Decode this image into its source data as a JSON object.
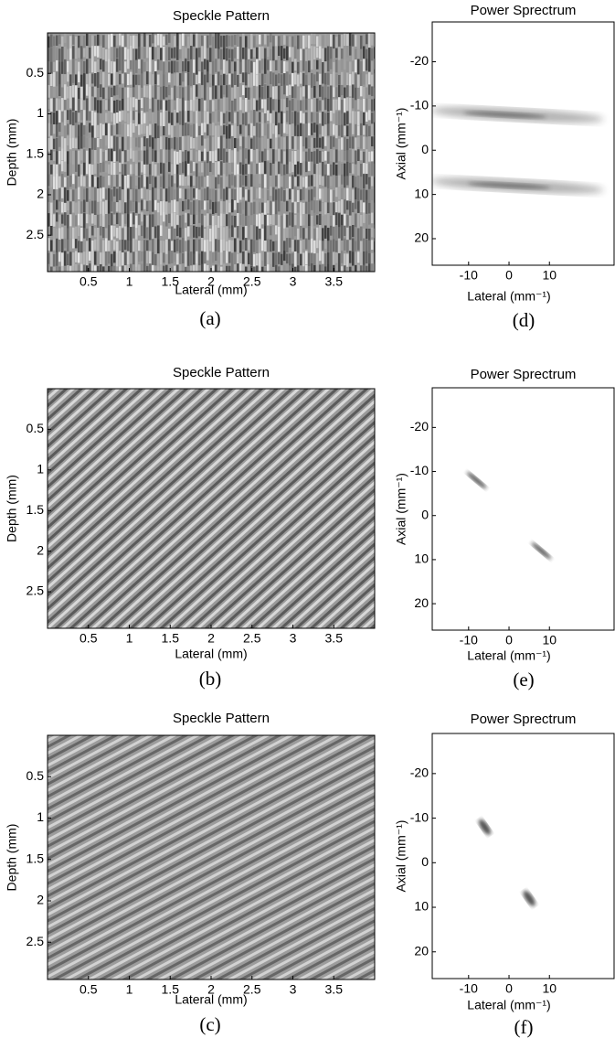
{
  "panels": [
    {
      "title": "Speckle Pattern",
      "xlabel": "Lateral (mm)",
      "ylabel": "Depth (mm)",
      "caption": "(a)",
      "xlim": [
        0,
        4
      ],
      "ylim": [
        0,
        2.95
      ],
      "y_reversed": true,
      "xticks": [
        0.5,
        1,
        1.5,
        2,
        2.5,
        3,
        3.5
      ],
      "yticks": [
        0.5,
        1,
        1.5,
        2,
        2.5
      ]
    },
    {
      "title": "Speckle Pattern",
      "xlabel": "Lateral (mm)",
      "ylabel": "Depth (mm)",
      "caption": "(b)",
      "xlim": [
        0,
        4
      ],
      "ylim": [
        0,
        2.95
      ],
      "y_reversed": true,
      "xticks": [
        0.5,
        1,
        1.5,
        2,
        2.5,
        3,
        3.5
      ],
      "yticks": [
        0.5,
        1,
        1.5,
        2,
        2.5
      ]
    },
    {
      "title": "Speckle Pattern",
      "xlabel": "Lateral (mm)",
      "ylabel": "Depth (mm)",
      "caption": "(c)",
      "xlim": [
        0,
        4
      ],
      "ylim": [
        0,
        2.95
      ],
      "y_reversed": true,
      "xticks": [
        0.5,
        1,
        1.5,
        2,
        2.5,
        3,
        3.5
      ],
      "yticks": [
        0.5,
        1,
        1.5,
        2,
        2.5
      ]
    },
    {
      "title": "Power Sprectrum",
      "xlabel": "Lateral (mm⁻¹)",
      "ylabel": "Axial (mm⁻¹)",
      "caption": "(d)",
      "xlim": [
        -19,
        26
      ],
      "ylim": [
        -29,
        26
      ],
      "y_reversed": true,
      "xticks": [
        -10,
        0,
        10
      ],
      "yticks": [
        -20,
        -10,
        0,
        10,
        20
      ]
    },
    {
      "title": "Power Sprectrum",
      "xlabel": "Lateral (mm⁻¹)",
      "ylabel": "Axial (mm⁻¹)",
      "caption": "(e)",
      "xlim": [
        -19,
        26
      ],
      "ylim": [
        -29,
        26
      ],
      "y_reversed": true,
      "xticks": [
        -10,
        0,
        10
      ],
      "yticks": [
        -20,
        -10,
        0,
        10,
        20
      ]
    },
    {
      "title": "Power Sprectrum",
      "xlabel": "Lateral (mm⁻¹)",
      "ylabel": "Axial (mm⁻¹)",
      "caption": "(f)",
      "xlim": [
        -19,
        26
      ],
      "ylim": [
        -29,
        26
      ],
      "y_reversed": true,
      "xticks": [
        -10,
        0,
        10
      ],
      "yticks": [
        -20,
        -10,
        0,
        10,
        20
      ]
    }
  ]
}
